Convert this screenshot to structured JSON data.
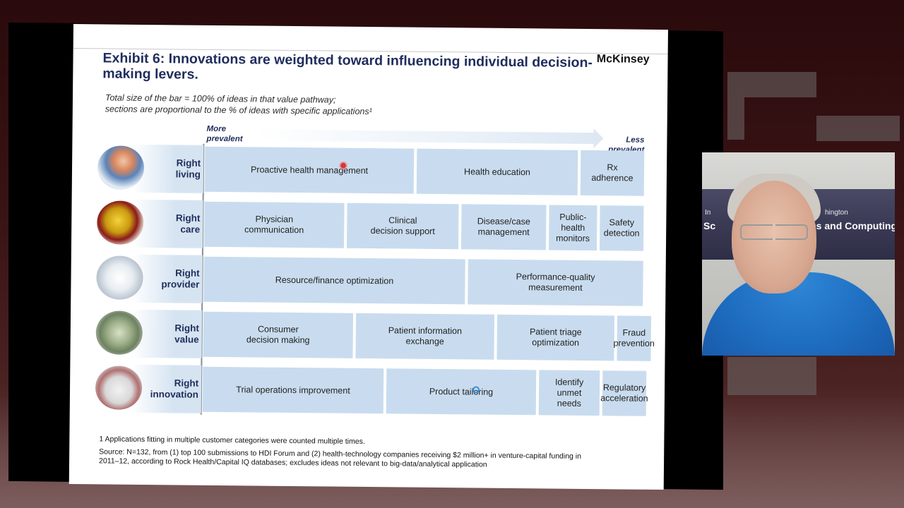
{
  "colors": {
    "accent": "#1f2d5c",
    "segment_fill": "#c9dcef",
    "shirt": "#1f6fc2"
  },
  "slide": {
    "brand": "McKinsey",
    "title": "Exhibit 6: Innovations are weighted toward influencing individual decision-making levers.",
    "subtitle_line1": "Total size of the bar = 100% of ideas in that value pathway;",
    "subtitle_line2": "sections are proportional to the % of ideas with specific applications¹",
    "axis": {
      "more_line1": "More",
      "more_line2": "prevalent",
      "less_line1": "Less",
      "less_line2": "prevalent"
    },
    "rows": [
      {
        "label_line1": "Right",
        "label_line2": "living",
        "icon": "patient-bp-icon",
        "segments": [
          {
            "line1": "Proactive health management",
            "line2": ""
          },
          {
            "line1": "Health education",
            "line2": ""
          },
          {
            "line1": "Rx",
            "line2": "adherence"
          }
        ]
      },
      {
        "label_line1": "Right",
        "label_line2": "care",
        "icon": "pills-icon",
        "segments": [
          {
            "line1": "Physician",
            "line2": "communication",
            "line3": ""
          },
          {
            "line1": "Clinical",
            "line2": "decision support",
            "line3": ""
          },
          {
            "line1": "Disease/case",
            "line2": "management",
            "line3": ""
          },
          {
            "line1": "Public-",
            "line2": "health",
            "line3": "monitors"
          },
          {
            "line1": "Safety",
            "line2": "detection",
            "line3": ""
          }
        ]
      },
      {
        "label_line1": "Right",
        "label_line2": "provider",
        "icon": "doctor-icon",
        "segments": [
          {
            "line1": "Resource/finance optimization",
            "line2": ""
          },
          {
            "line1": "Performance-quality",
            "line2": "measurement"
          }
        ]
      },
      {
        "label_line1": "Right",
        "label_line2": "value",
        "icon": "money-jar-icon",
        "segments": [
          {
            "line1": "Consumer",
            "line2": "decision making"
          },
          {
            "line1": "Patient information",
            "line2": "exchange"
          },
          {
            "line1": "Patient triage",
            "line2": "optimization"
          },
          {
            "line1": "Fraud",
            "line2": "prevention"
          }
        ]
      },
      {
        "label_line1": "Right",
        "label_line2": "innovation",
        "icon": "research-icon",
        "segments": [
          {
            "line1": "Trial operations improvement",
            "line2": "",
            "line3": ""
          },
          {
            "line1": "Product tailoring",
            "line2": "",
            "line3": ""
          },
          {
            "line1": "Identify",
            "line2": "unmet",
            "line3": "needs"
          },
          {
            "line1": "Regulatory",
            "line2": "acceleration",
            "line3": ""
          }
        ]
      }
    ],
    "footnote": "1 Applications fitting in multiple customer categories were counted multiple times.",
    "source_line1": "Source: N=132, from (1) top 100 submissions to HDI Forum and (2) health-technology companies receiving $2 million+ in venture-capital funding in",
    "source_line2": "2011–12, according to Rock Health/Capital IQ databases; excludes ideas not relevant to big-data/analytical application"
  },
  "webcam": {
    "banner_line1": "In",
    "banner_line2": "Sc",
    "banner_line3": "ics and Computing",
    "banner_line4": "hington"
  }
}
